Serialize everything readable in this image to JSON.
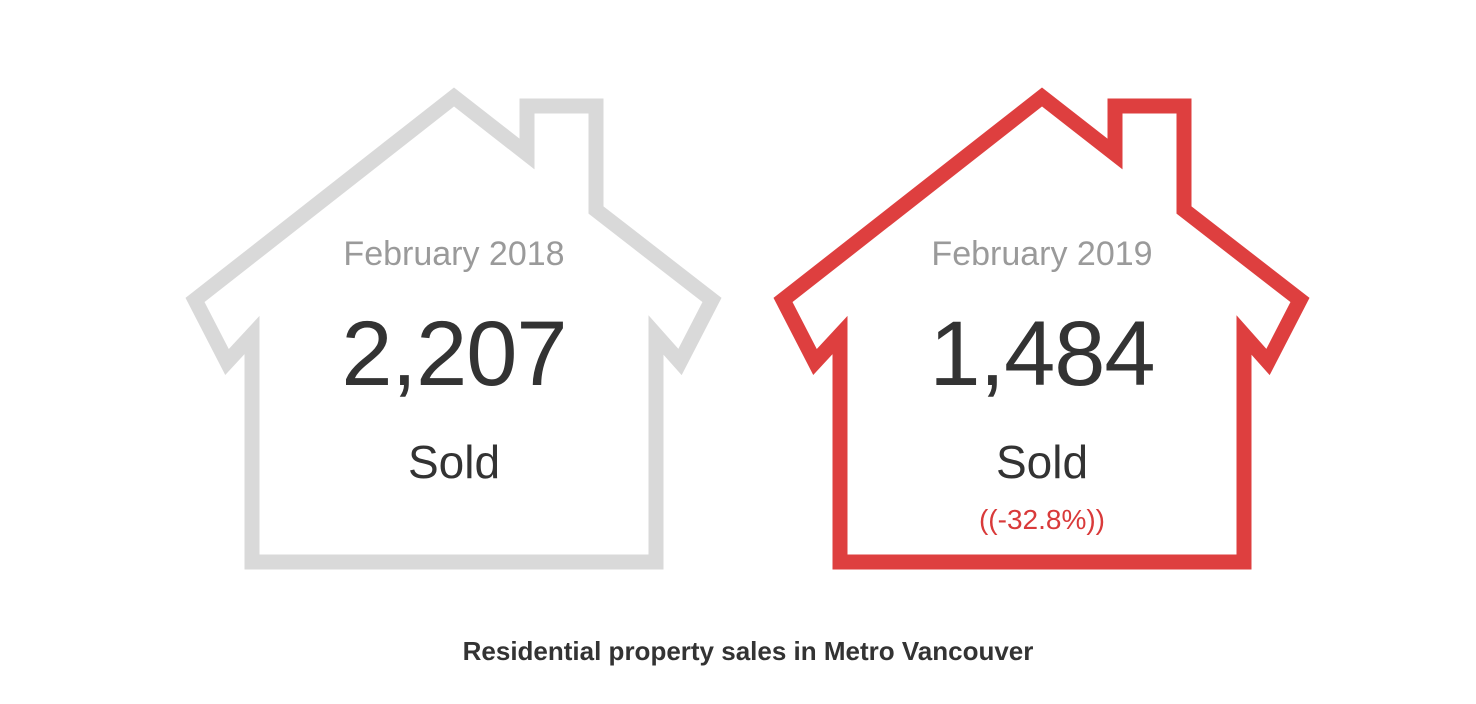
{
  "cards": [
    {
      "period": "February 2018",
      "count": "2,207",
      "label": "Sold",
      "outline_color": "#d9d9d9",
      "icon": "house-outline-icon"
    },
    {
      "period": "February 2019",
      "count": "1,484",
      "label": "Sold",
      "change": "((-32.8%))",
      "outline_color": "#de3f3f",
      "icon": "house-outline-icon"
    }
  ],
  "caption": "Residential property sales in Metro Vancouver"
}
